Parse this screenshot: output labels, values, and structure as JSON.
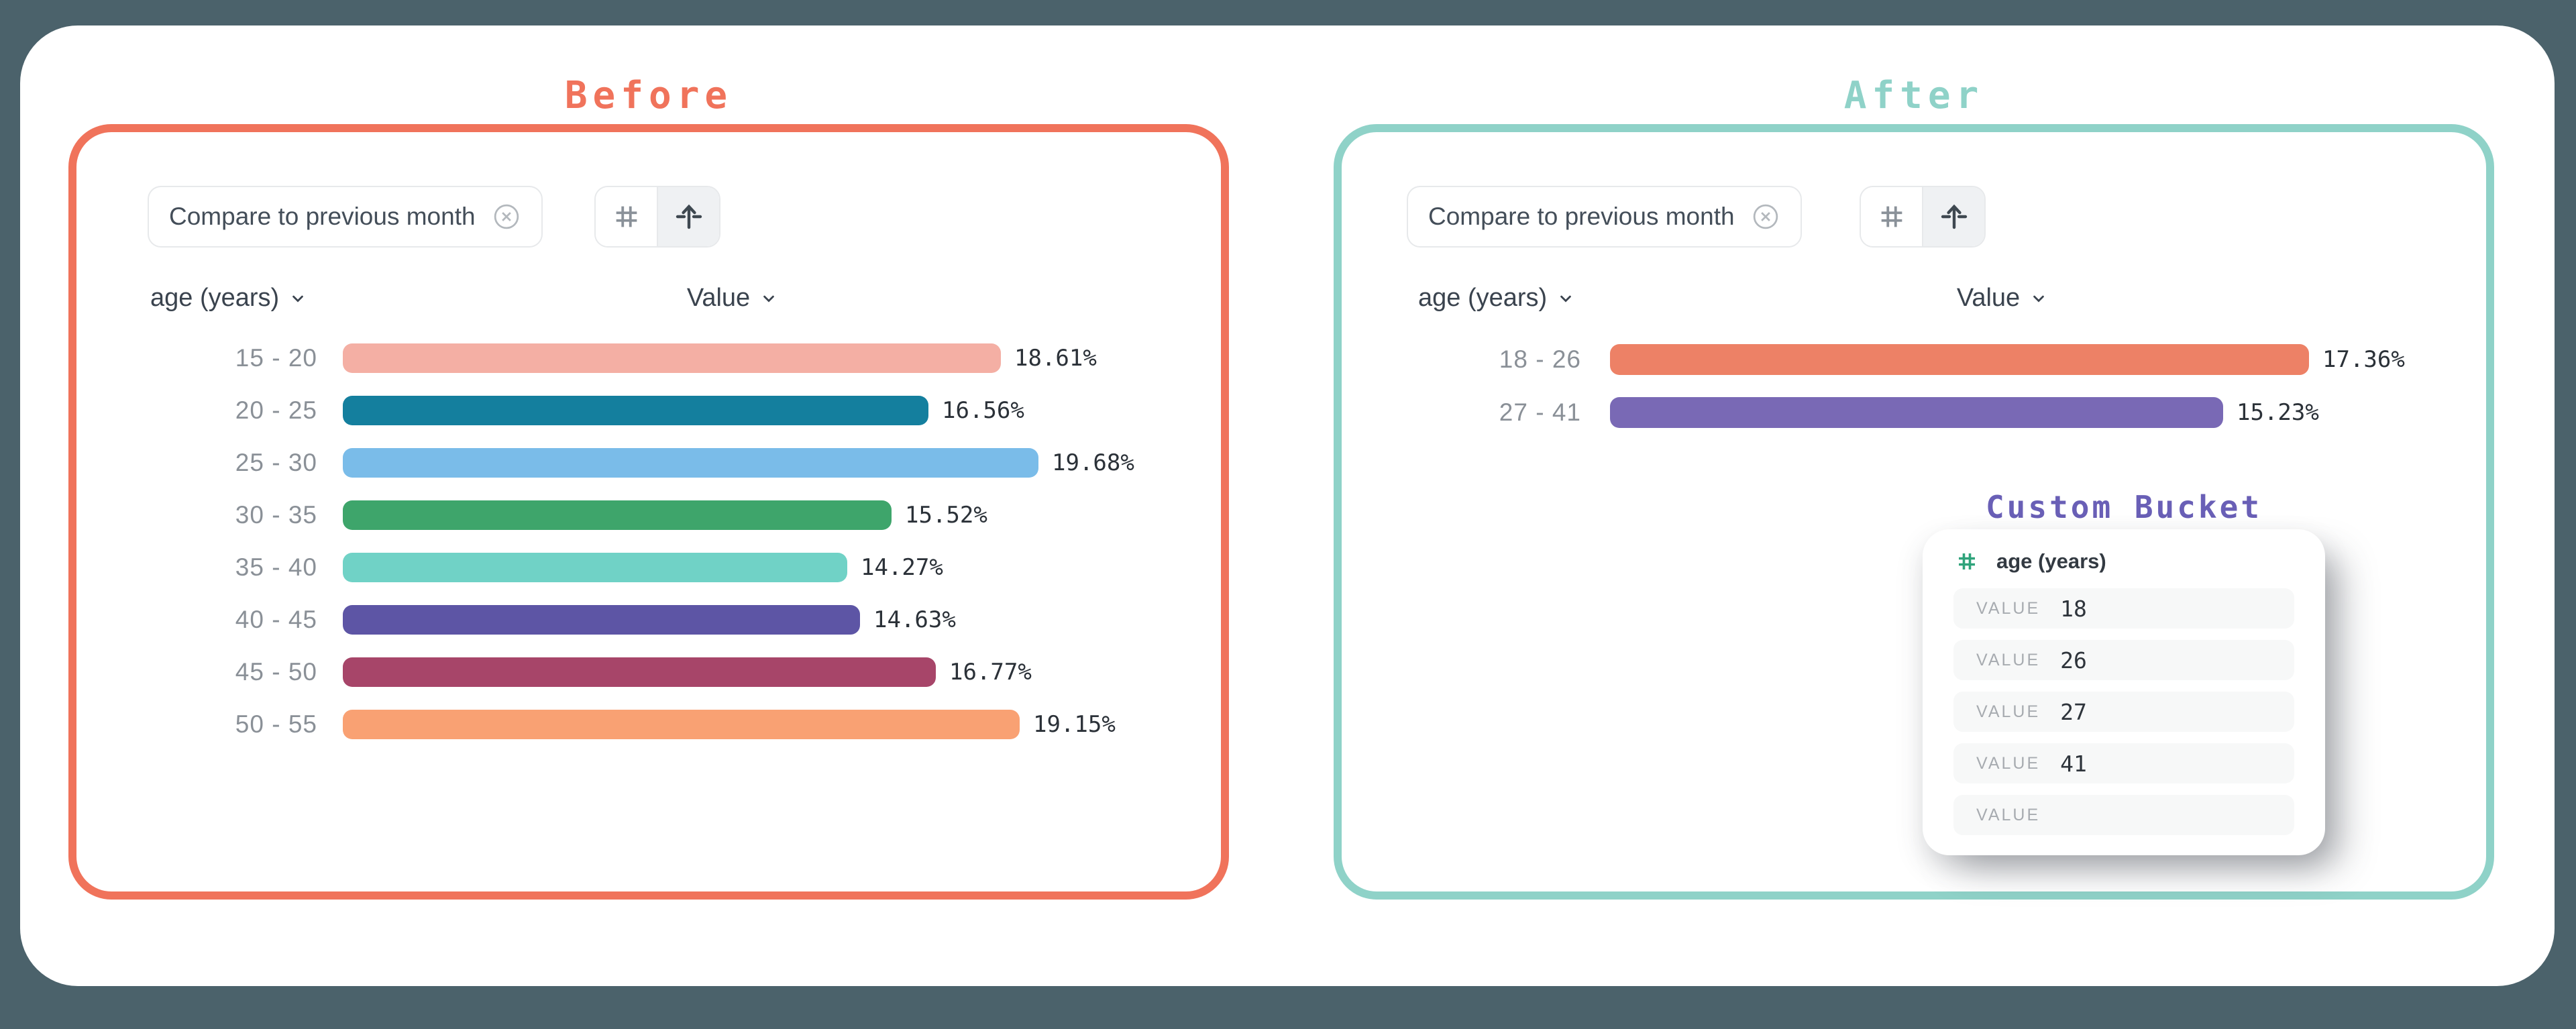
{
  "page": {
    "background_color": "#4B626B",
    "card_color": "#FFFFFF"
  },
  "before_panel": {
    "title": "Before",
    "accent_color": "#F0735B",
    "filter_chip": {
      "label": "Compare to previous month",
      "close_icon": "circle-x-icon"
    },
    "view_toggle": {
      "options": [
        "grid-hash-icon",
        "sort-arrow-up-icon"
      ],
      "selected": "sort-arrow-up-icon"
    },
    "dimension_header": "age (years)",
    "measure_header": "Value"
  },
  "after_panel": {
    "title": "After",
    "accent_color": "#8FD2C8",
    "filter_chip": {
      "label": "Compare to previous month",
      "close_icon": "circle-x-icon"
    },
    "view_toggle": {
      "options": [
        "grid-hash-icon",
        "sort-arrow-up-icon"
      ],
      "selected": "sort-arrow-up-icon"
    },
    "dimension_header": "age (years)",
    "measure_header": "Value",
    "custom_bucket": {
      "title": "Custom Bucket",
      "title_color": "#695FB6",
      "field_name": "age (years)",
      "field_icon": "hash-icon",
      "field_icon_color": "#2FA37B",
      "rows": [
        {
          "label": "VALUE",
          "value": "18"
        },
        {
          "label": "VALUE",
          "value": "26"
        },
        {
          "label": "VALUE",
          "value": "27"
        },
        {
          "label": "VALUE",
          "value": "41"
        },
        {
          "label": "VALUE",
          "value": ""
        }
      ]
    }
  },
  "chart_data": [
    {
      "type": "bar",
      "orientation": "horizontal",
      "title": "Before",
      "categories": [
        "15 - 20",
        "20 - 25",
        "25 - 30",
        "30 - 35",
        "35 - 40",
        "40 - 45",
        "45 - 50",
        "50 - 55"
      ],
      "values": [
        18.61,
        16.56,
        19.68,
        15.52,
        14.27,
        14.63,
        16.77,
        19.15
      ],
      "labels": [
        "18.61%",
        "16.56%",
        "19.68%",
        "15.52%",
        "14.27%",
        "14.63%",
        "16.77%",
        "19.15%"
      ],
      "colors": [
        "#F4AFA4",
        "#147F9E",
        "#7ABCE9",
        "#3EA56B",
        "#70D2C6",
        "#5D55A5",
        "#A74569",
        "#F9A173"
      ],
      "xlabel": "Value",
      "ylabel": "age (years)",
      "xlim": [
        0,
        20
      ],
      "grid": false,
      "legend": false,
      "value_labels": "outside-end"
    },
    {
      "type": "bar",
      "orientation": "horizontal",
      "title": "After",
      "categories": [
        "18 - 26",
        "27 - 41"
      ],
      "values": [
        17.36,
        15.23
      ],
      "labels": [
        "17.36%",
        "15.23%"
      ],
      "colors": [
        "#ED8166",
        "#7969B5"
      ],
      "xlabel": "Value",
      "ylabel": "age (years)",
      "xlim": [
        0,
        20
      ],
      "grid": false,
      "legend": false,
      "value_labels": "outside-end"
    }
  ]
}
